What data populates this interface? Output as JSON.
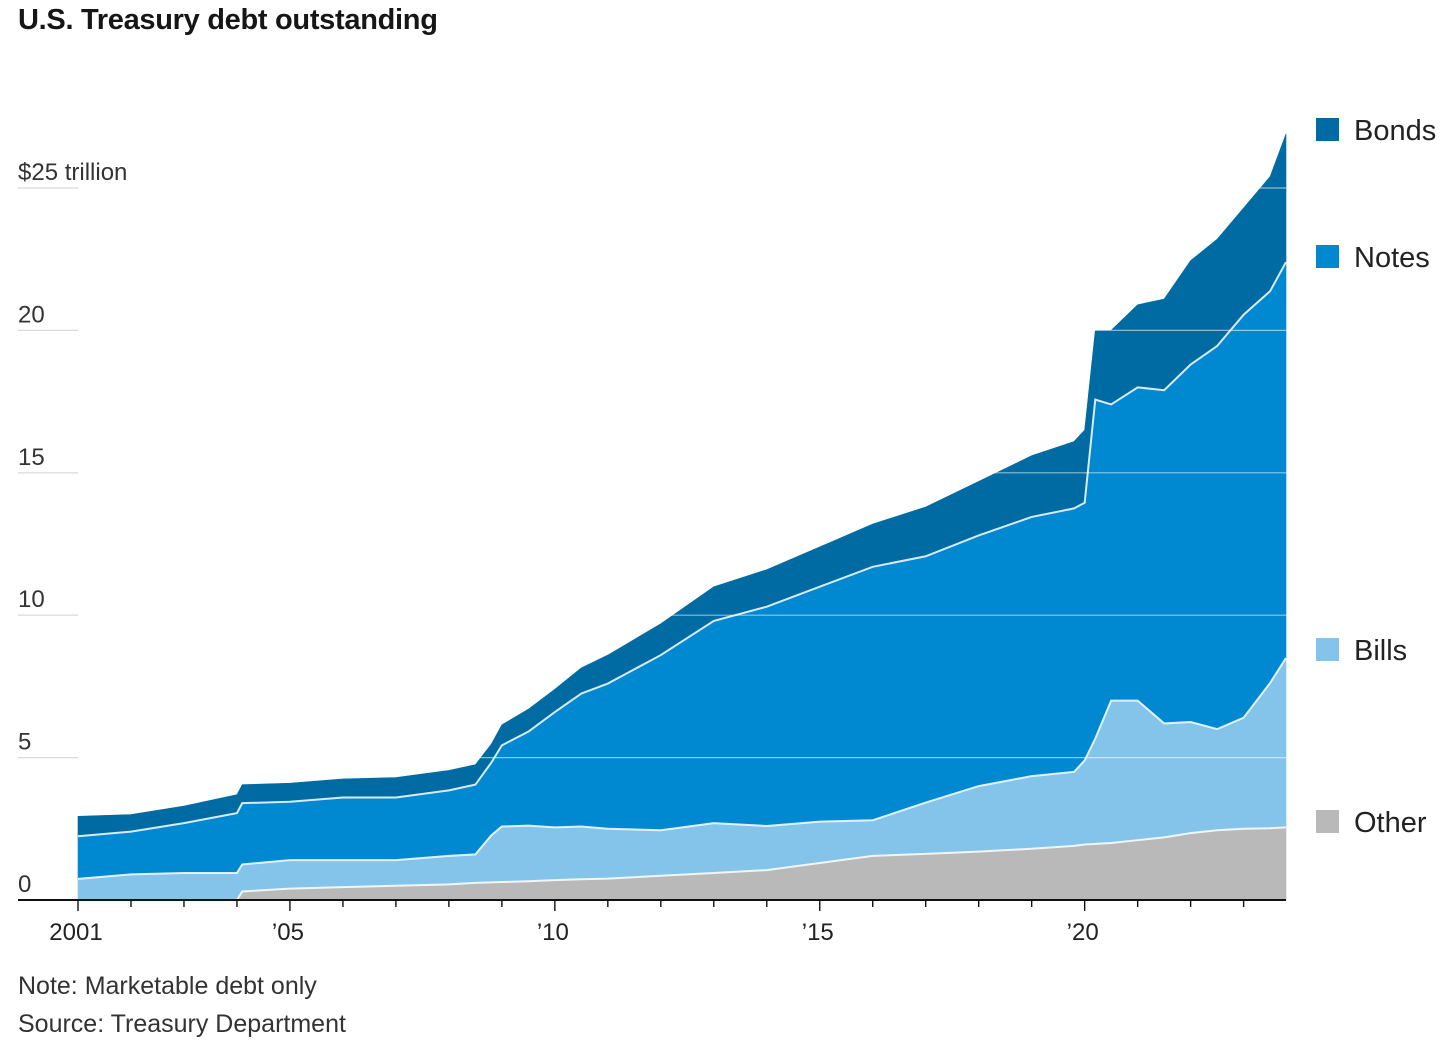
{
  "title": "U.S. Treasury debt outstanding",
  "note": "Note: Marketable debt only",
  "source": "Source: Treasury Department",
  "chart_data": {
    "type": "area",
    "stacked": true,
    "x_unit": "year",
    "y_unit": "trillion dollars",
    "xlim": [
      2001.0,
      2023.8
    ],
    "ylim": [
      0,
      25
    ],
    "y_ticks": [
      0,
      5,
      10,
      15,
      20,
      25
    ],
    "y_tick_labels": [
      "0",
      "5",
      "10",
      "15",
      "20",
      "$25 trillion"
    ],
    "x_ticks": [
      2001,
      2005,
      2010,
      2015,
      2020
    ],
    "x_tick_labels": [
      "2001",
      "’05",
      "’10",
      "’15",
      "’20"
    ],
    "grid": "horizontal",
    "legend_position": "right",
    "x": [
      2001.0,
      2002.0,
      2003.0,
      2004.0,
      2004.1,
      2005.0,
      2006.0,
      2007.0,
      2008.0,
      2008.5,
      2008.8,
      2009.0,
      2009.5,
      2010.0,
      2010.5,
      2011.0,
      2012.0,
      2013.0,
      2014.0,
      2015.0,
      2016.0,
      2017.0,
      2018.0,
      2019.0,
      2019.8,
      2020.0,
      2020.2,
      2020.5,
      2021.0,
      2021.5,
      2022.0,
      2022.5,
      2023.0,
      2023.5,
      2023.8
    ],
    "series": [
      {
        "name": "Other",
        "color": "#b9b9b9",
        "values": [
          0,
          0,
          0,
          0,
          0.3,
          0.4,
          0.45,
          0.5,
          0.55,
          0.6,
          0.62,
          0.63,
          0.66,
          0.7,
          0.73,
          0.75,
          0.85,
          0.95,
          1.05,
          1.3,
          1.55,
          1.62,
          1.7,
          1.8,
          1.9,
          1.95,
          1.97,
          2.0,
          2.1,
          2.2,
          2.35,
          2.45,
          2.5,
          2.52,
          2.55
        ]
      },
      {
        "name": "Bills",
        "color": "#85c4ea",
        "values": [
          0.74,
          0.9,
          0.95,
          0.95,
          0.95,
          1.0,
          0.95,
          0.9,
          1.0,
          1.0,
          1.65,
          1.95,
          1.95,
          1.85,
          1.85,
          1.75,
          1.6,
          1.75,
          1.55,
          1.45,
          1.25,
          1.8,
          2.3,
          2.55,
          2.6,
          2.95,
          3.7,
          5.0,
          4.9,
          4.0,
          3.9,
          3.55,
          3.9,
          5.1,
          5.95
        ]
      },
      {
        "name": "Notes",
        "color": "#0088d1",
        "values": [
          1.5,
          1.5,
          1.75,
          2.1,
          2.15,
          2.05,
          2.2,
          2.2,
          2.3,
          2.45,
          2.55,
          2.85,
          3.3,
          4.05,
          4.67,
          5.1,
          6.15,
          7.1,
          7.7,
          8.25,
          8.9,
          8.65,
          8.8,
          9.1,
          9.25,
          9.05,
          11.9,
          10.4,
          11.0,
          11.7,
          12.55,
          13.45,
          14.15,
          13.76,
          13.9
        ]
      },
      {
        "name": "Bonds",
        "color": "#006ba3",
        "values": [
          0.7,
          0.6,
          0.6,
          0.65,
          0.65,
          0.65,
          0.65,
          0.7,
          0.7,
          0.7,
          0.65,
          0.72,
          0.79,
          0.8,
          0.9,
          1.0,
          1.1,
          1.2,
          1.3,
          1.4,
          1.5,
          1.73,
          1.9,
          2.15,
          2.35,
          2.55,
          2.43,
          2.6,
          2.9,
          3.2,
          3.65,
          3.75,
          3.75,
          4.02,
          4.5
        ]
      }
    ]
  }
}
